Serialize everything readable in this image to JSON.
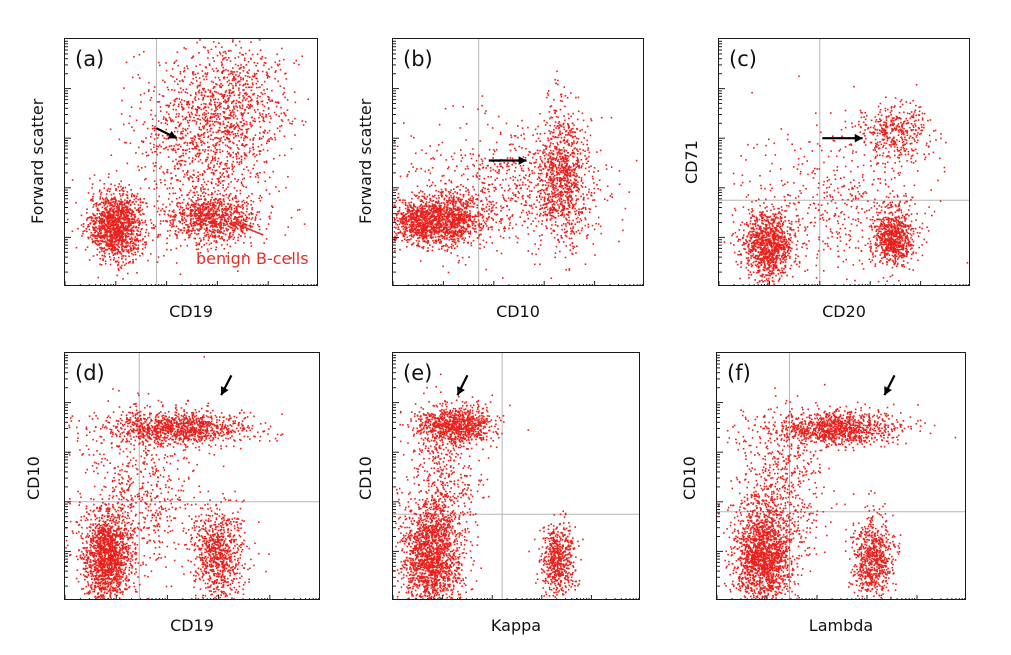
{
  "chart_data": [
    {
      "type": "scatter",
      "panel_label": "(a)",
      "xlabel": "CD19",
      "ylabel": "Forward scatter",
      "annotation": "benign B-cells",
      "color": "#e8201c",
      "xscale": "log",
      "grid": true,
      "populations": [
        {
          "x": 0.2,
          "y": 0.25,
          "sx": 0.055,
          "sy": 0.07,
          "n": 1300
        },
        {
          "x": 0.58,
          "y": 0.28,
          "sx": 0.09,
          "sy": 0.05,
          "n": 900
        },
        {
          "x": 0.55,
          "y": 0.62,
          "sx": 0.14,
          "sy": 0.16,
          "n": 1200
        },
        {
          "x": 0.7,
          "y": 0.78,
          "sx": 0.09,
          "sy": 0.12,
          "n": 400
        }
      ],
      "arrows": [
        {
          "x1": 0.36,
          "y1": 0.64,
          "x2": 0.44,
          "y2": 0.6
        },
        {
          "x1": 0.78,
          "y1": 0.21,
          "x2": 0.66,
          "y2": 0.26,
          "color": "#e0302a",
          "open": true
        }
      ]
    },
    {
      "type": "scatter",
      "panel_label": "(b)",
      "xlabel": "CD10",
      "ylabel": "Forward scatter",
      "color": "#e8201c",
      "xscale": "log",
      "grid": true,
      "populations": [
        {
          "x": 0.16,
          "y": 0.27,
          "sx": 0.1,
          "sy": 0.05,
          "n": 1600
        },
        {
          "x": 0.67,
          "y": 0.45,
          "sx": 0.05,
          "sy": 0.14,
          "n": 900
        },
        {
          "x": 0.45,
          "y": 0.4,
          "sx": 0.2,
          "sy": 0.12,
          "n": 700
        }
      ],
      "arrows": [
        {
          "x1": 0.38,
          "y1": 0.51,
          "x2": 0.53,
          "y2": 0.51
        }
      ]
    },
    {
      "type": "scatter",
      "panel_label": "(c)",
      "xlabel": "CD20",
      "ylabel": "CD71",
      "color": "#e8201c",
      "xscale": "log",
      "grid": true,
      "populations": [
        {
          "x": 0.19,
          "y": 0.17,
          "sx": 0.05,
          "sy": 0.07,
          "n": 1000
        },
        {
          "x": 0.69,
          "y": 0.2,
          "sx": 0.04,
          "sy": 0.06,
          "n": 700
        },
        {
          "x": 0.69,
          "y": 0.63,
          "sx": 0.07,
          "sy": 0.06,
          "n": 400
        },
        {
          "x": 0.46,
          "y": 0.35,
          "sx": 0.2,
          "sy": 0.15,
          "n": 500
        }
      ],
      "arrows": [
        {
          "x1": 0.41,
          "y1": 0.6,
          "x2": 0.57,
          "y2": 0.6
        }
      ]
    },
    {
      "type": "scatter",
      "panel_label": "(d)",
      "xlabel": "CD19",
      "ylabel": "CD10",
      "color": "#e8201c",
      "xscale": "log",
      "grid": true,
      "populations": [
        {
          "x": 0.16,
          "y": 0.18,
          "sx": 0.05,
          "sy": 0.1,
          "n": 1500
        },
        {
          "x": 0.6,
          "y": 0.19,
          "sx": 0.05,
          "sy": 0.09,
          "n": 800
        },
        {
          "x": 0.44,
          "y": 0.7,
          "sx": 0.14,
          "sy": 0.035,
          "n": 1100
        },
        {
          "x": 0.3,
          "y": 0.44,
          "sx": 0.12,
          "sy": 0.16,
          "n": 600
        }
      ],
      "arrows": [
        {
          "x1": 0.65,
          "y1": 0.91,
          "x2": 0.61,
          "y2": 0.83
        }
      ]
    },
    {
      "type": "scatter",
      "panel_label": "(e)",
      "xlabel": "Kappa",
      "ylabel": "CD10",
      "color": "#e8201c",
      "xscale": "log",
      "grid": true,
      "populations": [
        {
          "x": 0.15,
          "y": 0.18,
          "sx": 0.06,
          "sy": 0.11,
          "n": 1600
        },
        {
          "x": 0.66,
          "y": 0.17,
          "sx": 0.035,
          "sy": 0.07,
          "n": 600
        },
        {
          "x": 0.25,
          "y": 0.71,
          "sx": 0.08,
          "sy": 0.04,
          "n": 900
        },
        {
          "x": 0.2,
          "y": 0.44,
          "sx": 0.07,
          "sy": 0.17,
          "n": 500
        }
      ],
      "arrows": [
        {
          "x1": 0.3,
          "y1": 0.91,
          "x2": 0.26,
          "y2": 0.83
        }
      ]
    },
    {
      "type": "scatter",
      "panel_label": "(f)",
      "xlabel": "Lambda",
      "ylabel": "CD10",
      "color": "#e8201c",
      "xscale": "log",
      "grid": true,
      "populations": [
        {
          "x": 0.18,
          "y": 0.18,
          "sx": 0.06,
          "sy": 0.1,
          "n": 1600
        },
        {
          "x": 0.62,
          "y": 0.18,
          "sx": 0.04,
          "sy": 0.08,
          "n": 700
        },
        {
          "x": 0.48,
          "y": 0.7,
          "sx": 0.12,
          "sy": 0.035,
          "n": 1000
        },
        {
          "x": 0.25,
          "y": 0.45,
          "sx": 0.09,
          "sy": 0.16,
          "n": 600
        }
      ],
      "arrows": [
        {
          "x1": 0.71,
          "y1": 0.91,
          "x2": 0.67,
          "y2": 0.83
        }
      ]
    }
  ]
}
